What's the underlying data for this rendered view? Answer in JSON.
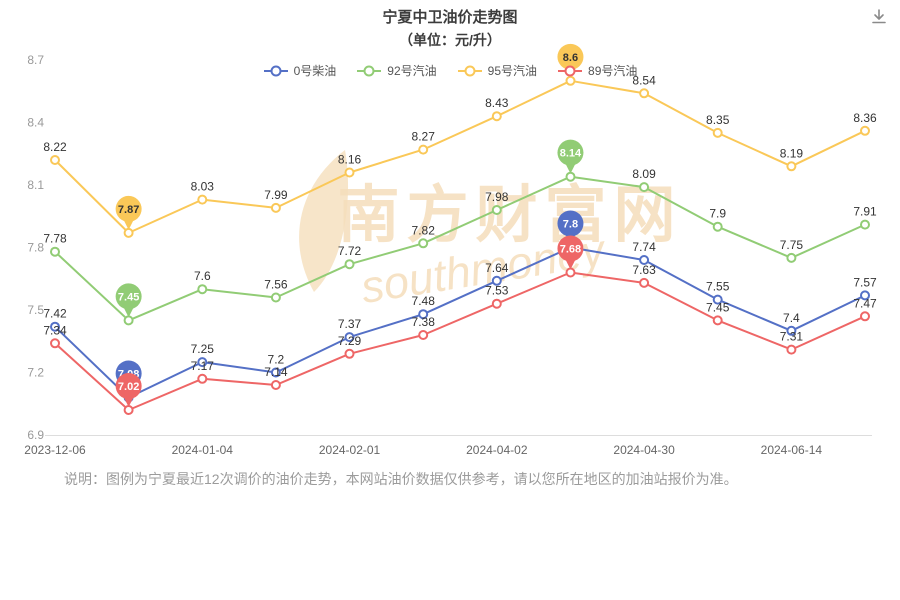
{
  "header": {
    "title": "宁夏中卫油价走势图",
    "subtitle": "（单位：元/升）"
  },
  "watermark": {
    "text": "南方财富网",
    "script": "southmoney",
    "color": "#f5debc"
  },
  "footer": {
    "note": "说明：图例为宁夏最近12次调价的油价走势，本网站油价数据仅供参考，请以您所在地区的加油站报价为准。"
  },
  "chart_data": {
    "type": "line",
    "title": "宁夏中卫油价走势图",
    "unit_label": "（单位：元/升）",
    "ylim": [
      6.9,
      8.7
    ],
    "y_ticks": [
      8.7,
      8.4,
      8.1,
      7.8,
      7.5,
      7.2,
      6.9
    ],
    "num_points": 12,
    "x_tick_indices": [
      0,
      2,
      4,
      6,
      8,
      10
    ],
    "x_tick_labels": [
      "2023-12-06",
      "2024-01-04",
      "2024-02-01",
      "2024-04-02",
      "2024-04-30",
      "2024-06-14"
    ],
    "grid": false,
    "legend_position": "top",
    "draw_order": [
      2,
      1,
      0,
      3
    ],
    "series": [
      {
        "name": "0号柴油",
        "color": "#5470c6",
        "balloon_text_color": "#ffffff",
        "highlight_indices": [
          1,
          7
        ],
        "values": [
          7.42,
          7.08,
          7.25,
          7.2,
          7.37,
          7.48,
          7.64,
          7.8,
          7.74,
          7.55,
          7.4,
          7.57
        ]
      },
      {
        "name": "92号汽油",
        "color": "#91cc75",
        "balloon_text_color": "#ffffff",
        "highlight_indices": [
          1,
          7
        ],
        "values": [
          7.78,
          7.45,
          7.6,
          7.56,
          7.72,
          7.82,
          7.98,
          8.14,
          8.09,
          7.9,
          7.75,
          7.91
        ]
      },
      {
        "name": "95号汽油",
        "color": "#fac858",
        "balloon_text_color": "#333333",
        "highlight_indices": [
          1,
          7
        ],
        "values": [
          8.22,
          7.87,
          8.03,
          7.99,
          8.16,
          8.27,
          8.43,
          8.6,
          8.54,
          8.35,
          8.19,
          8.36
        ]
      },
      {
        "name": "89号汽油",
        "color": "#ee6666",
        "balloon_text_color": "#ffffff",
        "highlight_indices": [
          1,
          7
        ],
        "values": [
          7.34,
          7.02,
          7.17,
          7.14,
          7.29,
          7.38,
          7.53,
          7.68,
          7.63,
          7.45,
          7.31,
          7.47
        ]
      }
    ]
  }
}
